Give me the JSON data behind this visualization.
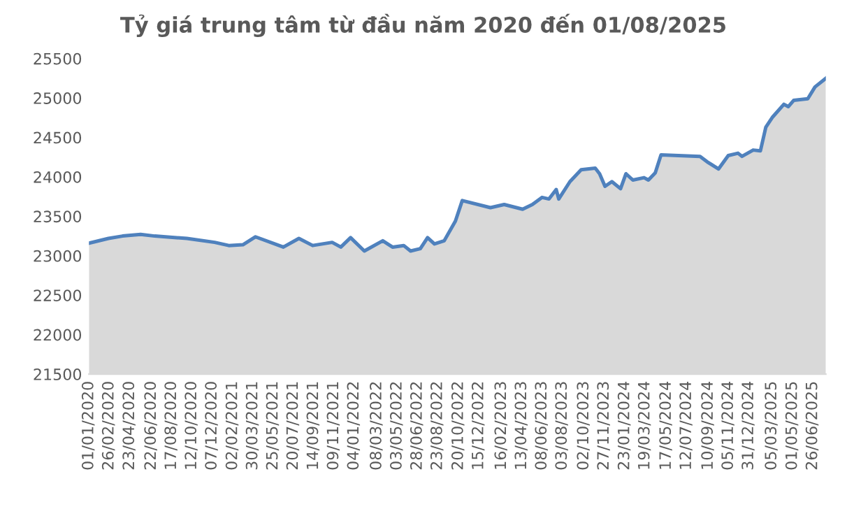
{
  "chart_data": {
    "type": "area",
    "title": "Tỷ giá trung tâm từ đầu năm 2020 đến 01/08/2025",
    "x": [
      "2020-01-01",
      "2020-02-24",
      "2020-04-03",
      "2020-05-23",
      "2020-07-01",
      "2020-09-28",
      "2020-12-14",
      "2021-01-22",
      "2021-03-02",
      "2021-04-06",
      "2021-06-22",
      "2021-08-04",
      "2021-09-11",
      "2021-11-04",
      "2021-11-28",
      "2021-12-25",
      "2022-02-01",
      "2022-03-24",
      "2022-04-20",
      "2022-05-21",
      "2022-06-09",
      "2022-07-06",
      "2022-07-26",
      "2022-08-14",
      "2022-09-10",
      "2022-10-11",
      "2022-10-30",
      "2023-01-16",
      "2023-02-23",
      "2023-04-15",
      "2023-05-12",
      "2023-06-08",
      "2023-06-27",
      "2023-07-17",
      "2023-07-24",
      "2023-08-24",
      "2023-09-24",
      "2023-11-02",
      "2023-11-14",
      "2023-11-29",
      "2023-12-18",
      "2024-01-11",
      "2024-01-26",
      "2024-02-14",
      "2024-03-16",
      "2024-03-28",
      "2024-04-16",
      "2024-05-02",
      "2024-08-18",
      "2024-09-07",
      "2024-10-08",
      "2024-11-04",
      "2024-12-01",
      "2024-12-12",
      "2025-01-12",
      "2025-02-01",
      "2025-02-16",
      "2025-03-07",
      "2025-04-07",
      "2025-04-19",
      "2025-05-04",
      "2025-06-12",
      "2025-07-02",
      "2025-08-01"
    ],
    "series": [
      {
        "color": "#4f81bd",
        "values": [
          23160,
          23220,
          23250,
          23270,
          23250,
          23220,
          23170,
          23130,
          23140,
          23240,
          23110,
          23220,
          23130,
          23170,
          23110,
          23230,
          23060,
          23190,
          23110,
          23130,
          23060,
          23090,
          23230,
          23150,
          23190,
          23440,
          23700,
          23610,
          23650,
          23590,
          23650,
          23740,
          23720,
          23840,
          23720,
          23940,
          24090,
          24110,
          24040,
          23880,
          23940,
          23850,
          24040,
          23960,
          23990,
          23960,
          24050,
          24280,
          24260,
          24190,
          24100,
          24270,
          24300,
          24260,
          24340,
          24330,
          24630,
          24760,
          24920,
          24890,
          24970,
          24990,
          25140,
          25250
        ]
      }
    ],
    "xlim": [
      "2020-01-01",
      "2025-08-01"
    ],
    "ylim": [
      21500,
      25500
    ],
    "yticks": [
      21500,
      22000,
      22500,
      23000,
      23500,
      24000,
      24500,
      25000,
      25500
    ],
    "xticks": [
      {
        "value": "2020-01-01",
        "label": "01/01/2020"
      },
      {
        "value": "2020-02-26",
        "label": "26/02/2020"
      },
      {
        "value": "2020-04-23",
        "label": "23/04/2020"
      },
      {
        "value": "2020-06-22",
        "label": "22/06/2020"
      },
      {
        "value": "2020-08-17",
        "label": "17/08/2020"
      },
      {
        "value": "2020-10-12",
        "label": "12/10/2020"
      },
      {
        "value": "2020-12-07",
        "label": "07/12/2020"
      },
      {
        "value": "2021-02-02",
        "label": "02/02/2021"
      },
      {
        "value": "2021-03-30",
        "label": "30/03/2021"
      },
      {
        "value": "2021-05-25",
        "label": "25/05/2021"
      },
      {
        "value": "2021-07-20",
        "label": "20/07/2021"
      },
      {
        "value": "2021-09-14",
        "label": "14/09/2021"
      },
      {
        "value": "2021-11-09",
        "label": "09/11/2021"
      },
      {
        "value": "2022-01-04",
        "label": "04/01/2022"
      },
      {
        "value": "2022-03-08",
        "label": "08/03/2022"
      },
      {
        "value": "2022-05-03",
        "label": "03/05/2022"
      },
      {
        "value": "2022-06-28",
        "label": "28/06/2022"
      },
      {
        "value": "2022-08-23",
        "label": "23/08/2022"
      },
      {
        "value": "2022-10-20",
        "label": "20/10/2022"
      },
      {
        "value": "2022-12-15",
        "label": "15/12/2022"
      },
      {
        "value": "2023-02-16",
        "label": "16/02/2023"
      },
      {
        "value": "2023-04-13",
        "label": "13/04/2023"
      },
      {
        "value": "2023-06-08",
        "label": "08/06/2023"
      },
      {
        "value": "2023-08-03",
        "label": "03/08/2023"
      },
      {
        "value": "2023-10-02",
        "label": "02/10/2023"
      },
      {
        "value": "2023-11-27",
        "label": "27/11/2023"
      },
      {
        "value": "2024-01-23",
        "label": "23/01/2024"
      },
      {
        "value": "2024-03-19",
        "label": "19/03/2024"
      },
      {
        "value": "2024-05-17",
        "label": "17/05/2024"
      },
      {
        "value": "2024-07-12",
        "label": "12/07/2024"
      },
      {
        "value": "2024-09-10",
        "label": "10/09/2024"
      },
      {
        "value": "2024-11-05",
        "label": "05/11/2024"
      },
      {
        "value": "2024-12-31",
        "label": "31/12/2024"
      },
      {
        "value": "2025-03-05",
        "label": "05/03/2025"
      },
      {
        "value": "2025-05-01",
        "label": "01/05/2025"
      },
      {
        "value": "2025-06-26",
        "label": "26/06/2025"
      }
    ],
    "grid": false
  }
}
